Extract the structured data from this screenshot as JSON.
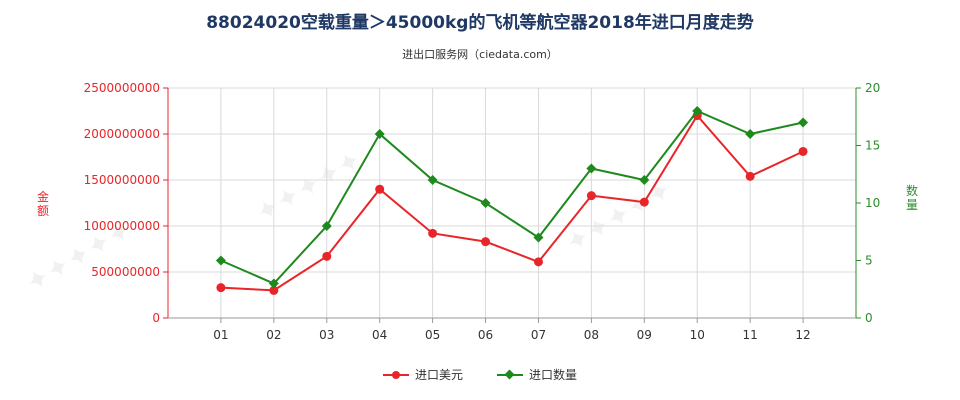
{
  "title": "88024020空载重量＞45000kg的飞机等航空器2018年进口月度走势",
  "subtitle": "进出口服务网（ciedata.com）",
  "chart_data": {
    "type": "line",
    "categories": [
      "01",
      "02",
      "03",
      "04",
      "05",
      "06",
      "07",
      "08",
      "09",
      "10",
      "11",
      "12"
    ],
    "y_left": {
      "label": "金额",
      "range": [
        0,
        2500000000
      ],
      "ticks": [
        "0",
        "500000000",
        "1000000000",
        "1500000000",
        "2000000000",
        "2500000000"
      ],
      "color": "#e8262a"
    },
    "y_right": {
      "label": "数量",
      "range": [
        0,
        20
      ],
      "ticks": [
        "0",
        "5",
        "10",
        "15",
        "20"
      ],
      "color": "#2e8b2e"
    },
    "grid": true,
    "legend_position": "bottom",
    "series": [
      {
        "name": "进口美元",
        "axis": "left",
        "color": "#e8262a",
        "marker": "circle",
        "values": [
          330000000,
          300000000,
          670000000,
          1400000000,
          920000000,
          830000000,
          610000000,
          1330000000,
          1260000000,
          2200000000,
          1540000000,
          1810000000
        ]
      },
      {
        "name": "进口数量",
        "axis": "right",
        "color": "#1e8a1e",
        "marker": "diamond",
        "values": [
          5,
          3,
          8,
          16,
          12,
          10,
          7,
          13,
          12,
          18,
          16,
          17
        ]
      }
    ]
  }
}
